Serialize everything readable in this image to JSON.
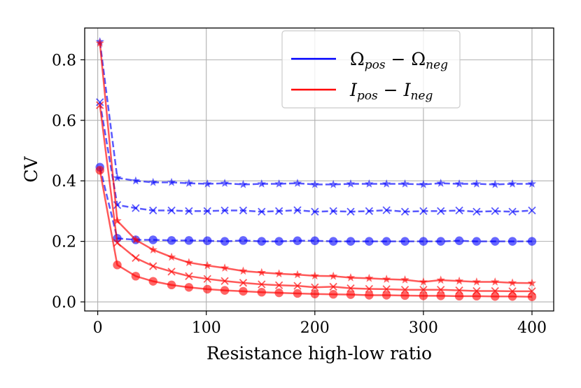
{
  "chart_data": {
    "type": "line",
    "title": "",
    "xlabel": "Resistance high-low ratio",
    "ylabel": "CV",
    "xlim": [
      -12,
      420
    ],
    "ylim": [
      -0.03,
      0.905
    ],
    "xticks": [
      0,
      100,
      200,
      300,
      400
    ],
    "yticks": [
      0.0,
      0.2,
      0.4,
      0.6,
      0.8
    ],
    "xtick_labels": [
      "0",
      "100",
      "200",
      "300",
      "400"
    ],
    "ytick_labels": [
      "0.0",
      "0.2",
      "0.4",
      "0.6",
      "0.8"
    ],
    "grid": true,
    "legend": {
      "position": "top-right",
      "entries": [
        {
          "name": "Ωpos − Ωneg",
          "color": "#0000ff",
          "base": "Ω",
          "sub1": "pos",
          "sub2": "neg"
        },
        {
          "name": "Ipos − Ineg",
          "color": "#ff0000",
          "base": "I",
          "sub1": "pos",
          "sub2": "neg"
        }
      ]
    },
    "x": [
      2,
      18,
      35,
      51,
      68,
      84,
      101,
      117,
      134,
      151,
      167,
      184,
      200,
      217,
      233,
      250,
      266,
      283,
      300,
      316,
      333,
      349,
      366,
      382,
      400
    ],
    "series": [
      {
        "name": "Ωpos − Ωneg (star)",
        "group": "blue",
        "color": "#0000ff",
        "linestyle": "dashed",
        "marker": "star",
        "values": [
          0.86,
          0.41,
          0.4,
          0.395,
          0.395,
          0.392,
          0.39,
          0.392,
          0.388,
          0.39,
          0.39,
          0.392,
          0.388,
          0.388,
          0.39,
          0.39,
          0.39,
          0.39,
          0.388,
          0.392,
          0.39,
          0.39,
          0.388,
          0.39,
          0.39
        ]
      },
      {
        "name": "Ωpos − Ωneg (x)",
        "group": "blue",
        "color": "#0000ff",
        "linestyle": "dashed",
        "marker": "x",
        "values": [
          0.66,
          0.32,
          0.31,
          0.302,
          0.302,
          0.3,
          0.3,
          0.302,
          0.302,
          0.298,
          0.3,
          0.303,
          0.298,
          0.3,
          0.298,
          0.3,
          0.303,
          0.298,
          0.3,
          0.3,
          0.302,
          0.298,
          0.3,
          0.298,
          0.302
        ]
      },
      {
        "name": "Ωpos − Ωneg (circle)",
        "group": "blue",
        "color": "#0000ff",
        "linestyle": "dashed",
        "marker": "circle",
        "values": [
          0.445,
          0.21,
          0.205,
          0.205,
          0.203,
          0.203,
          0.202,
          0.2,
          0.203,
          0.2,
          0.2,
          0.202,
          0.202,
          0.2,
          0.2,
          0.2,
          0.2,
          0.2,
          0.2,
          0.2,
          0.202,
          0.2,
          0.2,
          0.2,
          0.2
        ]
      },
      {
        "name": "Ipos − Ineg (star)",
        "group": "red",
        "color": "#ff0000",
        "linestyle": "solid",
        "marker": "star",
        "values": [
          0.855,
          0.268,
          0.205,
          0.172,
          0.148,
          0.13,
          0.12,
          0.112,
          0.102,
          0.097,
          0.093,
          0.09,
          0.086,
          0.085,
          0.08,
          0.078,
          0.075,
          0.073,
          0.066,
          0.072,
          0.069,
          0.066,
          0.066,
          0.063,
          0.062
        ]
      },
      {
        "name": "Ipos − Ineg (x)",
        "group": "red",
        "color": "#ff0000",
        "linestyle": "solid",
        "marker": "x",
        "values": [
          0.65,
          0.195,
          0.145,
          0.118,
          0.1,
          0.085,
          0.076,
          0.069,
          0.063,
          0.058,
          0.055,
          0.053,
          0.048,
          0.05,
          0.045,
          0.043,
          0.042,
          0.04,
          0.04,
          0.04,
          0.038,
          0.036,
          0.036,
          0.035,
          0.035
        ]
      },
      {
        "name": "Ipos − Ineg (circle)",
        "group": "red",
        "color": "#ff0000",
        "linestyle": "solid",
        "marker": "circle",
        "values": [
          0.435,
          0.122,
          0.085,
          0.068,
          0.056,
          0.048,
          0.042,
          0.038,
          0.035,
          0.032,
          0.03,
          0.028,
          0.026,
          0.025,
          0.024,
          0.022,
          0.022,
          0.021,
          0.02,
          0.02,
          0.019,
          0.019,
          0.018,
          0.018,
          0.017
        ]
      }
    ]
  }
}
